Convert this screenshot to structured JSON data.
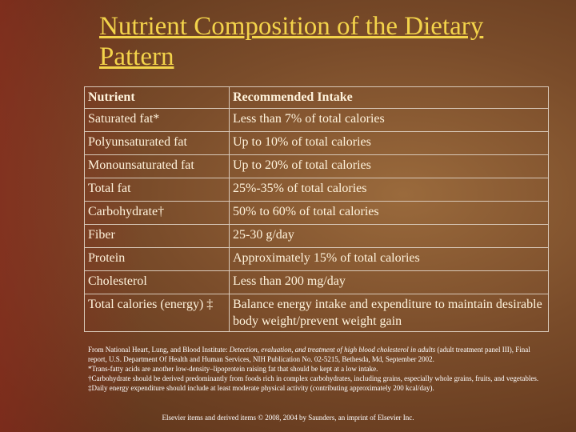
{
  "slide": {
    "title": "Nutrient Composition of the  Dietary Pattern",
    "table": {
      "header": [
        "Nutrient",
        "Recommended Intake"
      ],
      "rows": [
        [
          "Saturated fat*",
          "Less than 7% of total calories"
        ],
        [
          "Polyunsaturated fat",
          "Up to 10% of total calories"
        ],
        [
          "Monounsaturated fat",
          "Up to 20% of total calories"
        ],
        [
          "Total fat",
          "25%-35% of total calories"
        ],
        [
          "Carbohydrate†",
          "50% to 60% of total calories"
        ],
        [
          "Fiber",
          "25-30 g/day"
        ],
        [
          "Protein",
          "Approximately 15% of total calories"
        ],
        [
          "Cholesterol",
          "Less than 200 mg/day"
        ],
        [
          "Total calories (energy) ‡",
          "Balance energy intake and expenditure to maintain desirable body weight/prevent weight gain"
        ]
      ]
    },
    "source": {
      "prefix": "From National Heart, Lung, and Blood Institute: ",
      "title": "Detection, evaluation, and treatment of high blood cholesterol in adults",
      "suffix": " (adult treatment panel III), Final report, U.S. Department Of Health and Human Services, NIH Publication No. 02-5215, Bethesda, Md, September 2002."
    },
    "footnotes": [
      "*Trans-fatty acids are another low-density–lipoprotein raising fat that should be kept at a low intake.",
      "†Carbohydrate should be derived predominantly from foods rich in complex carbohydrates, including grains, especially whole grains, fruits, and vegetables.",
      "‡Daily energy expenditure should include at least moderate physical activity (contributing approximately 200 kcal/day)."
    ],
    "credit": "Elsevier items and derived items © 2008, 2004 by Saunders, an imprint of Elsevier Inc."
  }
}
